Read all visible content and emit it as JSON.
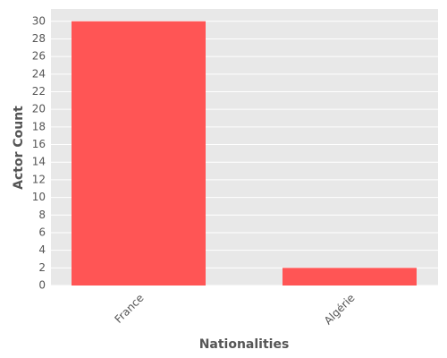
{
  "chart_data": {
    "type": "bar",
    "categories": [
      "France",
      "Algérie"
    ],
    "values": [
      30,
      2
    ],
    "color": "#ff5555",
    "xlabel": "Nationalities",
    "ylabel": "Actor Count",
    "ylim": [
      0,
      31.4
    ],
    "yticks": [
      0,
      2,
      4,
      6,
      8,
      10,
      12,
      14,
      16,
      18,
      20,
      22,
      24,
      26,
      28,
      30
    ],
    "grid": true
  }
}
